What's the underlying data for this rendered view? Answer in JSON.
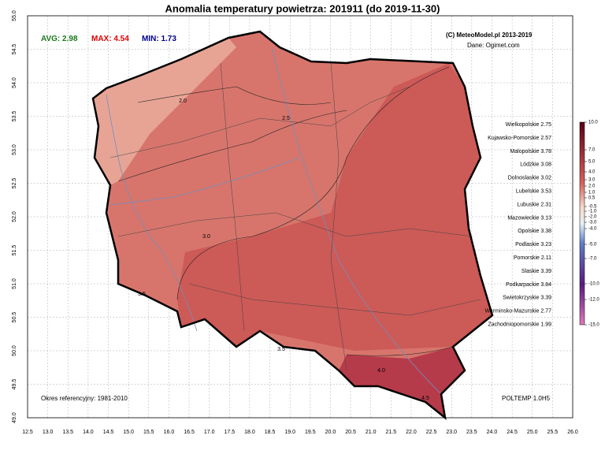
{
  "title": "Anomalia temperatury powietrza:  201911 (do 2019-11-30)",
  "stats": [
    {
      "label": "AVG:",
      "value": 2.98,
      "color": "#1a7a1a"
    },
    {
      "label": "MAX:",
      "value": 4.54,
      "color": "#e00000"
    },
    {
      "label": "MIN:",
      "value": 1.73,
      "color": "#00008b"
    }
  ],
  "credits": [
    "(C) MeteoModel.pl 2013-2019",
    "Dane: Ogimet.com"
  ],
  "regions": [
    {
      "name": "Wielkopolskie",
      "value": 2.75
    },
    {
      "name": "Kujawsko-Pomorskie",
      "value": 2.57
    },
    {
      "name": "Malopolskie",
      "value": 3.78
    },
    {
      "name": "Lódzkie",
      "value": 3.08
    },
    {
      "name": "Dolnoslaskie",
      "value": 3.02
    },
    {
      "name": "Lubelskie",
      "value": 3.53
    },
    {
      "name": "Lubuskie",
      "value": 2.31
    },
    {
      "name": "Mazowieckie",
      "value": 3.13
    },
    {
      "name": "Opolskie",
      "value": 3.38
    },
    {
      "name": "Podlaskie",
      "value": 3.23
    },
    {
      "name": "Pomorskie",
      "value": 2.11
    },
    {
      "name": "Slaskie",
      "value": 3.39
    },
    {
      "name": "Podkarpackie",
      "value": 3.84
    },
    {
      "name": "Swietokrzyskie",
      "value": 3.39
    },
    {
      "name": "Warminsko-Mazurskie",
      "value": 2.77
    },
    {
      "name": "Zachodniopomorskie",
      "value": 1.99
    }
  ],
  "colorbar_ticks": [
    "10.0",
    "7.0",
    "5.0",
    "4.0",
    "3.0",
    "2.0",
    "1.0",
    "0.5",
    "-0.5",
    "-1.0",
    "-2.0",
    "-3.0",
    "-4.0",
    "-5.0",
    "-7.0",
    "-10.0",
    "-12.0",
    "-15.0"
  ],
  "xticks": [
    "12.5",
    "13.0",
    "13.5",
    "14.0",
    "14.5",
    "15.0",
    "15.5",
    "16.0",
    "16.5",
    "17.0",
    "17.5",
    "18.0",
    "18.5",
    "19.0",
    "19.5",
    "20.0",
    "20.5",
    "21.0",
    "21.5",
    "22.0",
    "22.5",
    "23.0",
    "23.5",
    "24.0",
    "24.5",
    "25.0",
    "25.5",
    "26.0"
  ],
  "yticks": [
    "49.0",
    "49.5",
    "50.0",
    "50.5",
    "51.0",
    "51.5",
    "52.0",
    "52.5",
    "53.0",
    "53.5",
    "54.0",
    "54.5",
    "55.0"
  ],
  "contour_labels": [
    "2.0",
    "2.5",
    "3.0",
    "3.5",
    "3.5",
    "4.0",
    "4.5"
  ],
  "reference": "Okres referencyjny: 1981-2010",
  "model": "POLTEMP 1.0H5"
}
